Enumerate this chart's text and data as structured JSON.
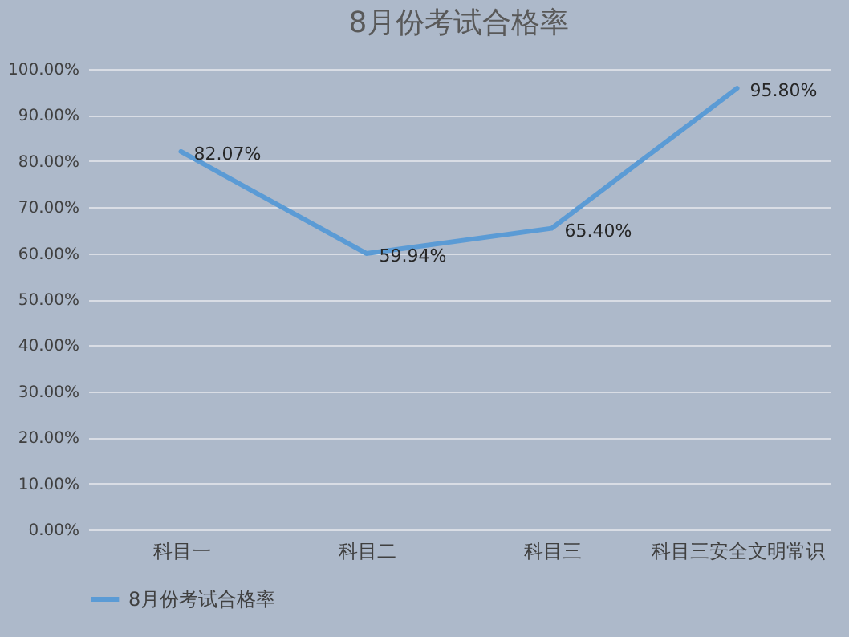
{
  "chart_data": {
    "type": "line",
    "title": "8月份考试合格率",
    "categories": [
      "科目一",
      "科目二",
      "科目三",
      "科目三安全文明常识"
    ],
    "series": [
      {
        "name": "8月份考试合格率",
        "color": "#5b9bd5",
        "values": [
          82.07,
          59.94,
          65.4,
          95.8
        ],
        "value_labels": [
          "82.07%",
          "59.94%",
          "65.40%",
          "95.80%"
        ]
      }
    ],
    "ylim": [
      0,
      100
    ],
    "yticks": [
      {
        "value": 0,
        "label": "0.00%"
      },
      {
        "value": 10,
        "label": "10.00%"
      },
      {
        "value": 20,
        "label": "20.00%"
      },
      {
        "value": 30,
        "label": "30.00%"
      },
      {
        "value": 40,
        "label": "40.00%"
      },
      {
        "value": 50,
        "label": "50.00%"
      },
      {
        "value": 60,
        "label": "60.00%"
      },
      {
        "value": 70,
        "label": "70.00%"
      },
      {
        "value": 80,
        "label": "80.00%"
      },
      {
        "value": 90,
        "label": "90.00%"
      },
      {
        "value": 100,
        "label": "100.00%"
      }
    ],
    "grid": "y",
    "legend": "bottom",
    "marker": "none",
    "line_style": "solid"
  }
}
